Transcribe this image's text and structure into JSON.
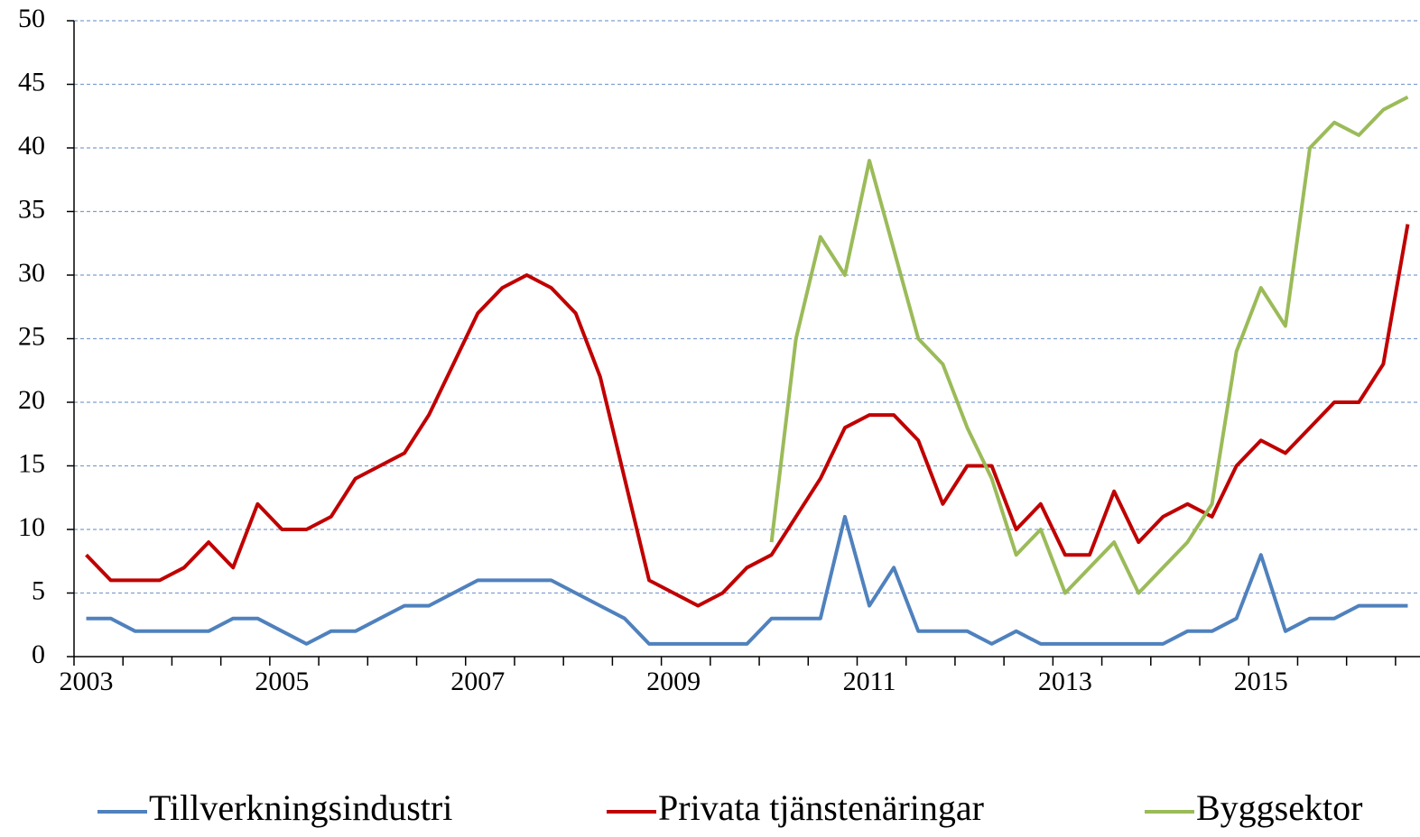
{
  "chart_data": {
    "type": "line",
    "categories": [
      "2003",
      null,
      null,
      null,
      null,
      null,
      null,
      null,
      "2005",
      null,
      null,
      null,
      null,
      null,
      null,
      null,
      "2007",
      null,
      null,
      null,
      null,
      null,
      null,
      null,
      "2009",
      null,
      null,
      null,
      null,
      null,
      null,
      null,
      "2011",
      null,
      null,
      null,
      null,
      null,
      null,
      null,
      "2013",
      null,
      null,
      null,
      null,
      null,
      null,
      null,
      "2015",
      null,
      null,
      null,
      null,
      null,
      null
    ],
    "series": [
      {
        "name": "Tillverkningsindustri",
        "color": "#4f81bd",
        "values": [
          3,
          3,
          2,
          2,
          2,
          2,
          3,
          3,
          2,
          1,
          2,
          2,
          3,
          4,
          4,
          5,
          6,
          6,
          6,
          6,
          5,
          4,
          3,
          1,
          1,
          1,
          1,
          1,
          3,
          3,
          3,
          11,
          4,
          7,
          2,
          2,
          2,
          1,
          2,
          1,
          1,
          1,
          1,
          1,
          1,
          2,
          2,
          3,
          8,
          2,
          3,
          3,
          4,
          4,
          4
        ]
      },
      {
        "name": "Privata tjänstenäringar",
        "color": "#c00000",
        "values": [
          8,
          6,
          6,
          6,
          7,
          9,
          7,
          12,
          10,
          10,
          11,
          14,
          15,
          16,
          19,
          23,
          27,
          29,
          30,
          29,
          27,
          22,
          14,
          6,
          5,
          4,
          5,
          7,
          8,
          11,
          14,
          18,
          19,
          19,
          17,
          12,
          15,
          15,
          10,
          12,
          8,
          8,
          13,
          9,
          11,
          12,
          11,
          15,
          17,
          16,
          18,
          20,
          20,
          23,
          34
        ]
      },
      {
        "name": "Byggsektor",
        "color": "#9bbb59",
        "values": [
          null,
          null,
          null,
          null,
          null,
          null,
          null,
          null,
          null,
          null,
          null,
          null,
          null,
          null,
          null,
          null,
          null,
          null,
          null,
          null,
          null,
          null,
          null,
          null,
          null,
          null,
          null,
          null,
          9,
          25,
          33,
          30,
          39,
          32,
          25,
          23,
          18,
          14,
          8,
          10,
          5,
          7,
          9,
          5,
          7,
          9,
          12,
          24,
          29,
          26,
          40,
          42,
          41,
          43,
          44
        ]
      }
    ],
    "ylim": [
      0,
      50
    ],
    "yticks": [
      0,
      5,
      10,
      15,
      20,
      25,
      30,
      35,
      40,
      45,
      50
    ],
    "grid": true
  }
}
